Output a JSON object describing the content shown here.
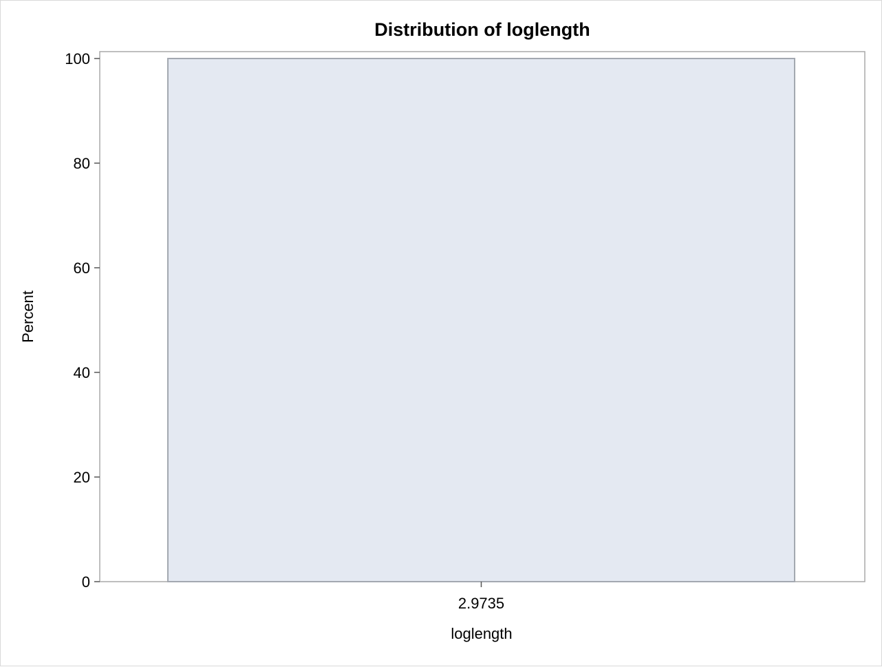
{
  "chart_data": {
    "type": "bar",
    "title": "Distribution of loglength",
    "xlabel": "loglength",
    "ylabel": "Percent",
    "categories": [
      "2.9735"
    ],
    "values": [
      100
    ],
    "ylim": [
      0,
      100
    ],
    "yticks": [
      0,
      20,
      40,
      60,
      80,
      100
    ],
    "grid": false,
    "bar_fill": "#e4e9f2",
    "bar_stroke": "#a3a8b0"
  }
}
